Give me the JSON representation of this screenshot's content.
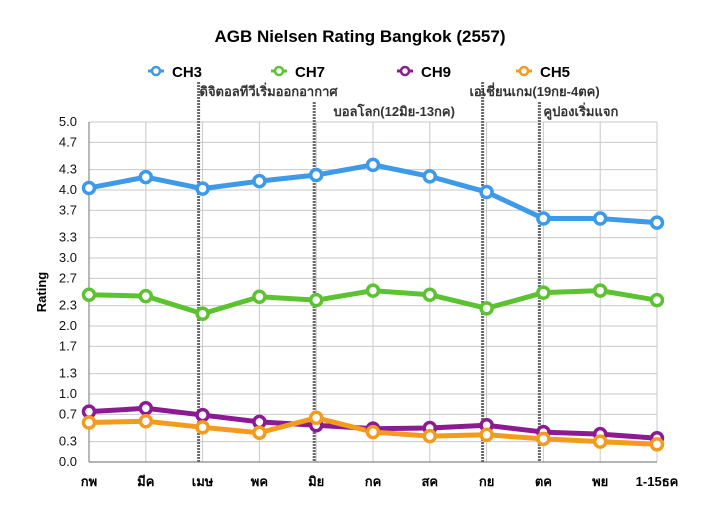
{
  "chart_data": {
    "type": "line",
    "title": "AGB Nielsen Rating Bangkok (2557)",
    "xlabel": "",
    "ylabel": "Rating",
    "ylim": [
      0.0,
      5.0
    ],
    "yticks": [
      "0.0",
      "0.3",
      "0.7",
      "1.0",
      "1.3",
      "1.7",
      "2.0",
      "2.3",
      "2.7",
      "3.0",
      "3.3",
      "3.7",
      "4.0",
      "4.3",
      "4.7",
      "5.0"
    ],
    "categories": [
      "กพ",
      "มีค",
      "เมษ",
      "พค",
      "มิย",
      "กค",
      "สค",
      "กย",
      "ตค",
      "พย",
      "1-15ธค"
    ],
    "grid": true,
    "legend": "top",
    "series": [
      {
        "name": "CH3",
        "color": "#3d9ae8",
        "values": [
          4.03,
          4.19,
          4.02,
          4.13,
          4.22,
          4.37,
          4.2,
          3.97,
          3.58,
          3.58,
          3.52
        ]
      },
      {
        "name": "CH7",
        "color": "#5cc330",
        "values": [
          2.46,
          2.44,
          2.18,
          2.43,
          2.38,
          2.52,
          2.46,
          2.26,
          2.49,
          2.52,
          2.38
        ]
      },
      {
        "name": "CH9",
        "color": "#8c1a92",
        "values": [
          0.74,
          0.79,
          0.69,
          0.59,
          0.54,
          0.49,
          0.5,
          0.54,
          0.44,
          0.41,
          0.35
        ]
      },
      {
        "name": "CH5",
        "color": "#f49a1c",
        "values": [
          0.58,
          0.6,
          0.51,
          0.43,
          0.65,
          0.44,
          0.38,
          0.4,
          0.34,
          0.3,
          0.26
        ]
      }
    ],
    "annotations": [
      {
        "text": "ดิจิตอลทีวีเริ่มออกอากาศ",
        "at_category": "เมษ"
      },
      {
        "text": "บอลโลก(12มิย-13กค)",
        "at_category": "มิย"
      },
      {
        "text": "เอเชี่ยนเกม(19กย-4ตค)",
        "at_category": "กย"
      },
      {
        "text": "คูปองเริ่มแจก",
        "at_category": "ตค"
      }
    ]
  }
}
